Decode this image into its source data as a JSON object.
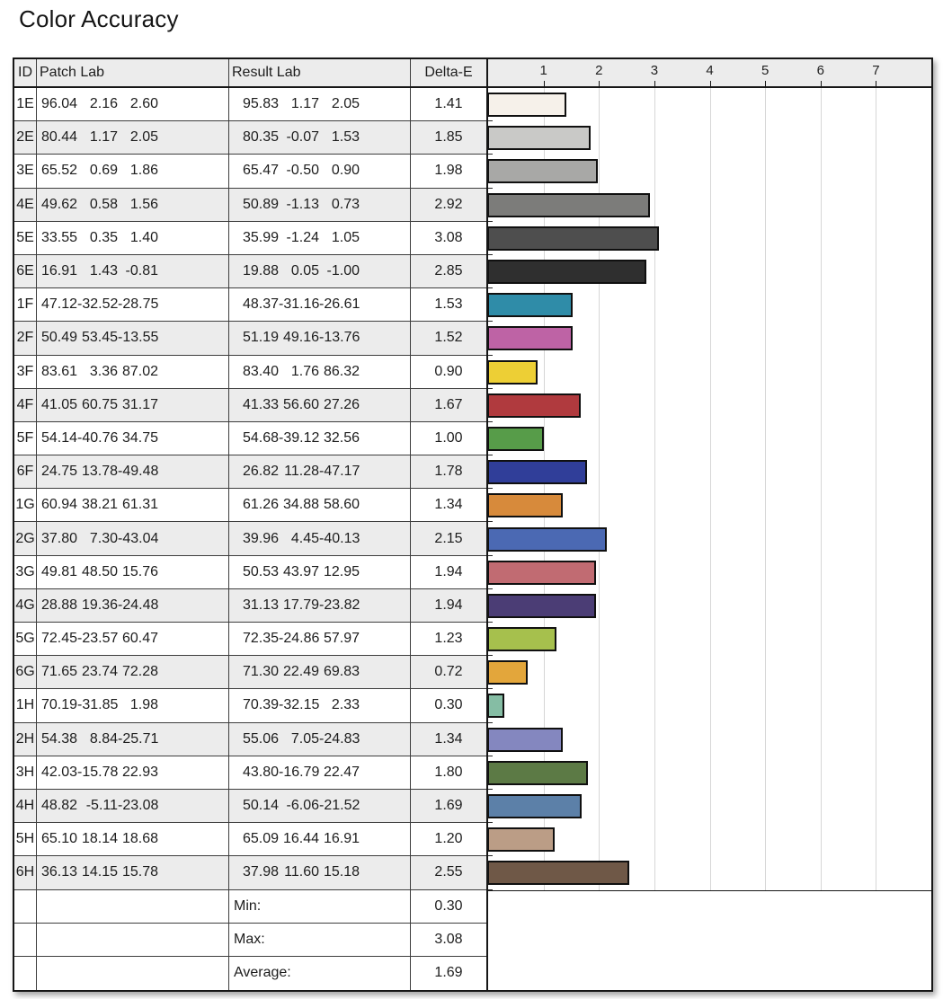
{
  "title": "Color Accuracy",
  "table": {
    "headers": {
      "id": "ID",
      "patch": "Patch Lab",
      "result": "Result Lab",
      "delta": "Delta-E"
    },
    "rows": [
      {
        "id": "1E",
        "patch": [
          "96.04",
          "2.16",
          "2.60"
        ],
        "result": [
          "95.83",
          "1.17",
          "2.05"
        ],
        "delta": "1.41",
        "color": "#f6f1ea"
      },
      {
        "id": "2E",
        "patch": [
          "80.44",
          "1.17",
          "2.05"
        ],
        "result": [
          "80.35",
          "-0.07",
          "1.53"
        ],
        "delta": "1.85",
        "color": "#c9c9c7"
      },
      {
        "id": "3E",
        "patch": [
          "65.52",
          "0.69",
          "1.86"
        ],
        "result": [
          "65.47",
          "-0.50",
          "0.90"
        ],
        "delta": "1.98",
        "color": "#a8a8a6"
      },
      {
        "id": "4E",
        "patch": [
          "49.62",
          "0.58",
          "1.56"
        ],
        "result": [
          "50.89",
          "-1.13",
          "0.73"
        ],
        "delta": "2.92",
        "color": "#7c7c7a"
      },
      {
        "id": "5E",
        "patch": [
          "33.55",
          "0.35",
          "1.40"
        ],
        "result": [
          "35.99",
          "-1.24",
          "1.05"
        ],
        "delta": "3.08",
        "color": "#4e4e4e"
      },
      {
        "id": "6E",
        "patch": [
          "16.91",
          "1.43",
          "-0.81"
        ],
        "result": [
          "19.88",
          "0.05",
          "-1.00"
        ],
        "delta": "2.85",
        "color": "#2f2f2f"
      },
      {
        "id": "1F",
        "patch": [
          "47.12",
          "-32.52",
          "-28.75"
        ],
        "result": [
          "48.37",
          "-31.16",
          "-26.61"
        ],
        "delta": "1.53",
        "color": "#2f8ca8"
      },
      {
        "id": "2F",
        "patch": [
          "50.49",
          "53.45",
          "-13.55"
        ],
        "result": [
          "51.19",
          "49.16",
          "-13.76"
        ],
        "delta": "1.52",
        "color": "#be63a5"
      },
      {
        "id": "3F",
        "patch": [
          "83.61",
          "3.36",
          "87.02"
        ],
        "result": [
          "83.40",
          "1.76",
          "86.32"
        ],
        "delta": "0.90",
        "color": "#edcf35"
      },
      {
        "id": "4F",
        "patch": [
          "41.05",
          "60.75",
          "31.17"
        ],
        "result": [
          "41.33",
          "56.60",
          "27.26"
        ],
        "delta": "1.67",
        "color": "#b03a3e"
      },
      {
        "id": "5F",
        "patch": [
          "54.14",
          "-40.76",
          "34.75"
        ],
        "result": [
          "54.68",
          "-39.12",
          "32.56"
        ],
        "delta": "1.00",
        "color": "#579c49"
      },
      {
        "id": "6F",
        "patch": [
          "24.75",
          "13.78",
          "-49.48"
        ],
        "result": [
          "26.82",
          "11.28",
          "-47.17"
        ],
        "delta": "1.78",
        "color": "#303e99"
      },
      {
        "id": "1G",
        "patch": [
          "60.94",
          "38.21",
          "61.31"
        ],
        "result": [
          "61.26",
          "34.88",
          "58.60"
        ],
        "delta": "1.34",
        "color": "#d78a3b"
      },
      {
        "id": "2G",
        "patch": [
          "37.80",
          "7.30",
          "-43.04"
        ],
        "result": [
          "39.96",
          "4.45",
          "-40.13"
        ],
        "delta": "2.15",
        "color": "#4b69b3"
      },
      {
        "id": "3G",
        "patch": [
          "49.81",
          "48.50",
          "15.76"
        ],
        "result": [
          "50.53",
          "43.97",
          "12.95"
        ],
        "delta": "1.94",
        "color": "#c16b72"
      },
      {
        "id": "4G",
        "patch": [
          "28.88",
          "19.36",
          "-24.48"
        ],
        "result": [
          "31.13",
          "17.79",
          "-23.82"
        ],
        "delta": "1.94",
        "color": "#4b3d75"
      },
      {
        "id": "5G",
        "patch": [
          "72.45",
          "-23.57",
          "60.47"
        ],
        "result": [
          "72.35",
          "-24.86",
          "57.97"
        ],
        "delta": "1.23",
        "color": "#a6c04d"
      },
      {
        "id": "6G",
        "patch": [
          "71.65",
          "23.74",
          "72.28"
        ],
        "result": [
          "71.30",
          "22.49",
          "69.83"
        ],
        "delta": "0.72",
        "color": "#e3a63b"
      },
      {
        "id": "1H",
        "patch": [
          "70.19",
          "-31.85",
          "1.98"
        ],
        "result": [
          "70.39",
          "-32.15",
          "2.33"
        ],
        "delta": "0.30",
        "color": "#85bda4"
      },
      {
        "id": "2H",
        "patch": [
          "54.38",
          "8.84",
          "-25.71"
        ],
        "result": [
          "55.06",
          "7.05",
          "-24.83"
        ],
        "delta": "1.34",
        "color": "#8487bf"
      },
      {
        "id": "3H",
        "patch": [
          "42.03",
          "-15.78",
          "22.93"
        ],
        "result": [
          "43.80",
          "-16.79",
          "22.47"
        ],
        "delta": "1.80",
        "color": "#5c7a45"
      },
      {
        "id": "4H",
        "patch": [
          "48.82",
          "-5.11",
          "-23.08"
        ],
        "result": [
          "50.14",
          "-6.06",
          "-21.52"
        ],
        "delta": "1.69",
        "color": "#5c80a8"
      },
      {
        "id": "5H",
        "patch": [
          "65.10",
          "18.14",
          "18.68"
        ],
        "result": [
          "65.09",
          "16.44",
          "16.91"
        ],
        "delta": "1.20",
        "color": "#bb9d86"
      },
      {
        "id": "6H",
        "patch": [
          "36.13",
          "14.15",
          "15.78"
        ],
        "result": [
          "37.98",
          "11.60",
          "15.18"
        ],
        "delta": "2.55",
        "color": "#6f5847"
      }
    ],
    "summary": [
      {
        "label": "Min:",
        "value": "0.30"
      },
      {
        "label": "Max:",
        "value": "3.08"
      },
      {
        "label": "Average:",
        "value": "1.69"
      }
    ]
  },
  "chart": {
    "axis_max": 8,
    "ticks": [
      "1",
      "2",
      "3",
      "4",
      "5",
      "6",
      "7"
    ]
  },
  "chart_data": {
    "type": "bar",
    "orientation": "horizontal",
    "title": "Color Accuracy",
    "xlabel": "Delta-E",
    "xlim": [
      0,
      8
    ],
    "x_ticks": [
      1,
      2,
      3,
      4,
      5,
      6,
      7
    ],
    "grid": true,
    "categories": [
      "1E",
      "2E",
      "3E",
      "4E",
      "5E",
      "6E",
      "1F",
      "2F",
      "3F",
      "4F",
      "5F",
      "6F",
      "1G",
      "2G",
      "3G",
      "4G",
      "5G",
      "6G",
      "1H",
      "2H",
      "3H",
      "4H",
      "5H",
      "6H"
    ],
    "values": [
      1.41,
      1.85,
      1.98,
      2.92,
      3.08,
      2.85,
      1.53,
      1.52,
      0.9,
      1.67,
      1.0,
      1.78,
      1.34,
      2.15,
      1.94,
      1.94,
      1.23,
      0.72,
      0.3,
      1.34,
      1.8,
      1.69,
      1.2,
      2.55
    ],
    "bar_colors": [
      "#f6f1ea",
      "#c9c9c7",
      "#a8a8a6",
      "#7c7c7a",
      "#4e4e4e",
      "#2f2f2f",
      "#2f8ca8",
      "#be63a5",
      "#edcf35",
      "#b03a3e",
      "#579c49",
      "#303e99",
      "#d78a3b",
      "#4b69b3",
      "#c16b72",
      "#4b3d75",
      "#a6c04d",
      "#e3a63b",
      "#85bda4",
      "#8487bf",
      "#5c7a45",
      "#5c80a8",
      "#bb9d86",
      "#6f5847"
    ],
    "summary": {
      "min": 0.3,
      "max": 3.08,
      "average": 1.69
    }
  }
}
